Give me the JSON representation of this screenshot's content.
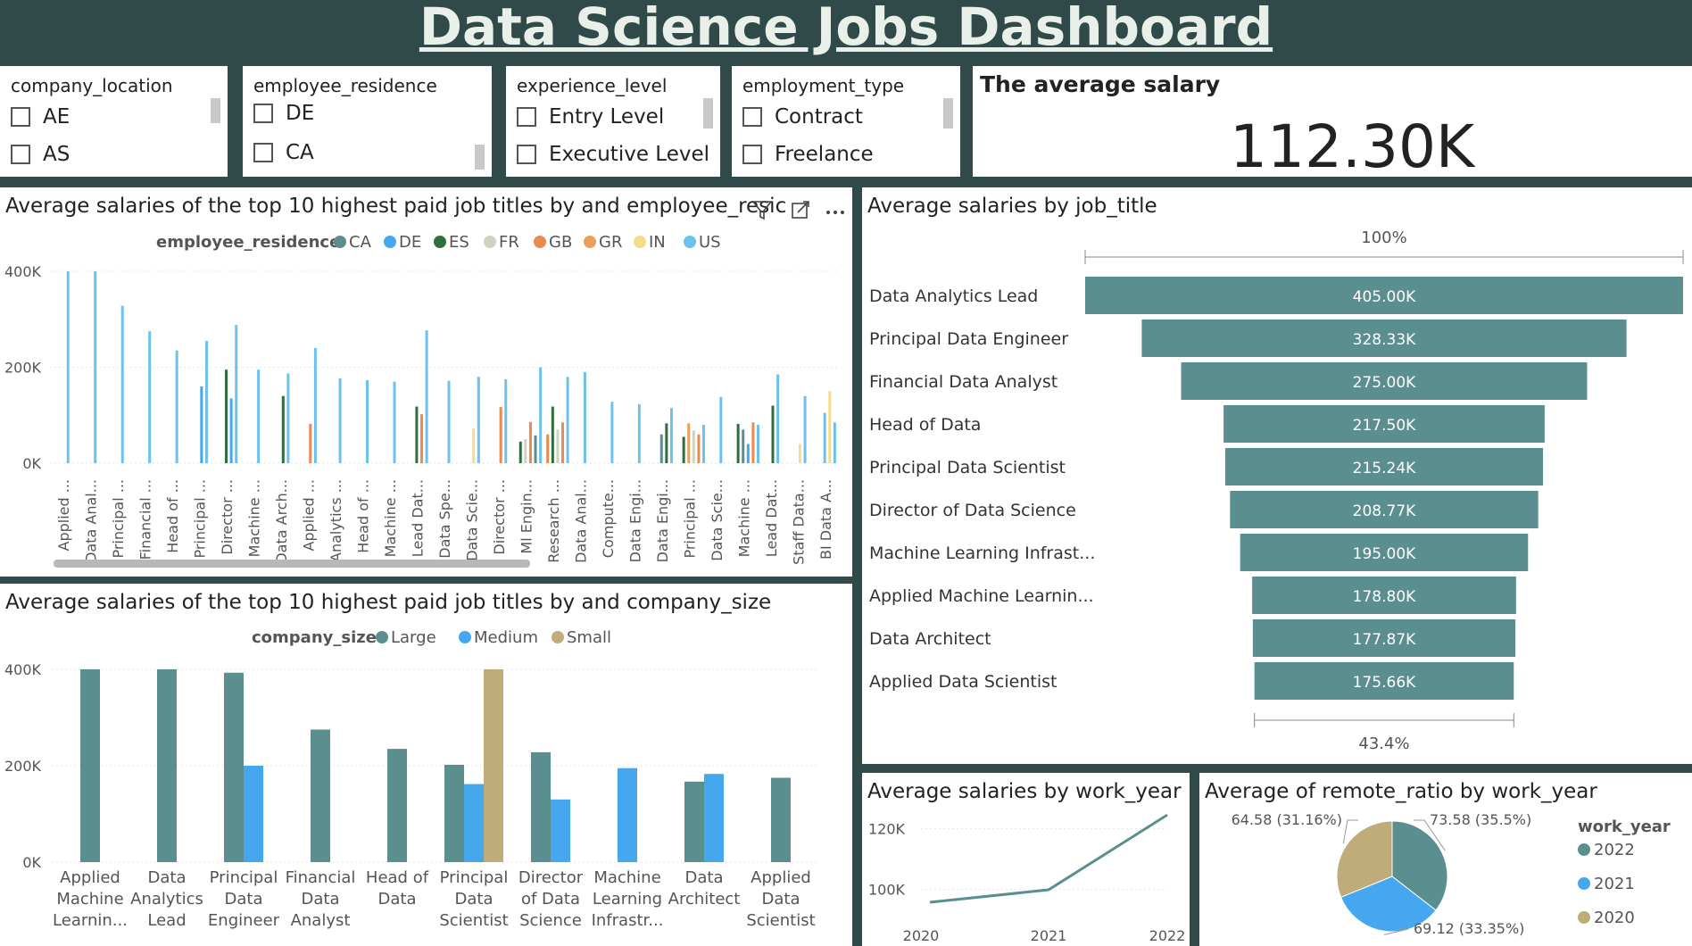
{
  "title": "Data Science Jobs Dashboard",
  "slicers": [
    {
      "label": "company_location",
      "options": [
        "AE",
        "AS"
      ]
    },
    {
      "label": "employee_residence",
      "options": [
        "DE",
        "CA"
      ]
    },
    {
      "label": "experience_level",
      "options": [
        "Entry Level",
        "Executive Level"
      ]
    },
    {
      "label": "employment_type",
      "options": [
        "Contract",
        "Freelance"
      ]
    }
  ],
  "kpi": {
    "label": "The average salary",
    "value": "112.30K"
  },
  "colors": {
    "teal": "#5b8f8f",
    "blue": "#45a8ef",
    "sand": "#bfac78",
    "CA": "#5b8f8f",
    "DE": "#45a8ef",
    "ES": "#2f6f3e",
    "FR": "#cfd4c0",
    "GB": "#e98a4e",
    "GR": "#e9a05a",
    "IN": "#f4dd8a",
    "US": "#6cc1ef"
  },
  "chart_data": [
    {
      "type": "bar",
      "title": "Average salaries of the top 10 highest paid job titles by and employee_resic",
      "legend_title": "employee_residence",
      "legend": [
        "CA",
        "DE",
        "ES",
        "FR",
        "GB",
        "GR",
        "IN",
        "US"
      ],
      "ylim": [
        0,
        400000
      ],
      "yticks": [
        "0K",
        "200K",
        "400K"
      ],
      "categories": [
        "Applied ...",
        "Data Anal...",
        "Principal ...",
        "Financial ...",
        "Head of ...",
        "Principal ...",
        "Director ...",
        "Machine ...",
        "Data Arch...",
        "Applied ...",
        "Analytics ...",
        "Head of ...",
        "Machine ...",
        "Lead Dat...",
        "Data Spe...",
        "Data Scie...",
        "Director ...",
        "Ml Engin...",
        "Research ...",
        "Data Anal...",
        "Compute...",
        "Data Engi...",
        "Data Engi...",
        "Principal ...",
        "Data Scie...",
        "Machine ...",
        "Lead Dat...",
        "Staff Data...",
        "BI Data A..."
      ],
      "bars": [
        [
          [
            "US",
            400000
          ]
        ],
        [
          [
            "US",
            400000
          ]
        ],
        [
          [
            "US",
            328000
          ]
        ],
        [
          [
            "US",
            275000
          ]
        ],
        [
          [
            "US",
            235000
          ]
        ],
        [
          [
            "DE",
            160000
          ],
          [
            "US",
            255000
          ]
        ],
        [
          [
            "ES",
            195000
          ],
          [
            "DE",
            135000
          ],
          [
            "US",
            288000
          ]
        ],
        [
          [
            "US",
            195000
          ]
        ],
        [
          [
            "ES",
            140000
          ],
          [
            "US",
            187000
          ]
        ],
        [
          [
            "GB",
            82000
          ],
          [
            "US",
            240000
          ]
        ],
        [
          [
            "US",
            177000
          ]
        ],
        [
          [
            "US",
            173000
          ]
        ],
        [
          [
            "US",
            170000
          ]
        ],
        [
          [
            "ES",
            118000
          ],
          [
            "GB",
            102000
          ],
          [
            "US",
            277000
          ]
        ],
        [
          [
            "US",
            172000
          ]
        ],
        [
          [
            "IN",
            72000
          ],
          [
            "US",
            180000
          ]
        ],
        [
          [
            "GB",
            117000
          ],
          [
            "US",
            175000
          ]
        ],
        [
          [
            "ES",
            45000
          ],
          [
            "FR",
            50000
          ],
          [
            "GB",
            86000
          ],
          [
            "CA",
            58000
          ],
          [
            "US",
            200000
          ]
        ],
        [
          [
            "GB",
            60000
          ],
          [
            "ES",
            118000
          ],
          [
            "FR",
            70000
          ],
          [
            "GB",
            85000
          ],
          [
            "US",
            180000
          ]
        ],
        [
          [
            "US",
            190000
          ]
        ],
        [
          [
            "US",
            128000
          ]
        ],
        [
          [
            "US",
            123000
          ]
        ],
        [
          [
            "CA",
            60000
          ],
          [
            "ES",
            83000
          ],
          [
            "US",
            115000
          ]
        ],
        [
          [
            "ES",
            55000
          ],
          [
            "GR",
            83000
          ],
          [
            "FR",
            68000
          ],
          [
            "GB",
            60000
          ],
          [
            "US",
            80000
          ]
        ],
        [
          [
            "US",
            138000
          ]
        ],
        [
          [
            "ES",
            82000
          ],
          [
            "CA",
            70000
          ],
          [
            "DE",
            40000
          ],
          [
            "GB",
            85000
          ],
          [
            "US",
            80000
          ]
        ],
        [
          [
            "ES",
            120000
          ],
          [
            "US",
            185000
          ]
        ],
        [
          [
            "IN",
            40000
          ],
          [
            "US",
            140000
          ]
        ],
        [
          [
            "US",
            105000
          ],
          [
            "IN",
            150000
          ],
          [
            "US",
            85000
          ]
        ]
      ]
    },
    {
      "type": "bar",
      "title": "Average salaries of the top 10 highest paid job titles by and company_size",
      "legend_title": "company_size",
      "legend": [
        "Large",
        "Medium",
        "Small"
      ],
      "ylim": [
        0,
        400000
      ],
      "yticks": [
        "0K",
        "200K",
        "400K"
      ],
      "categories": [
        [
          "Applied",
          "Machine",
          "Learnin..."
        ],
        [
          "Data",
          "Analytics",
          "Lead"
        ],
        [
          "Principal",
          "Data",
          "Engineer"
        ],
        [
          "Financial",
          "Data",
          "Analyst"
        ],
        [
          "Head of",
          "Data"
        ],
        [
          "Principal",
          "Data",
          "Scientist"
        ],
        [
          "Director",
          "of Data",
          "Science"
        ],
        [
          "Machine",
          "Learning",
          "Infrastr..."
        ],
        [
          "Data",
          "Architect"
        ],
        [
          "Applied",
          "Data",
          "Scientist"
        ]
      ],
      "series": [
        {
          "name": "Large",
          "values": [
            400000,
            400000,
            393000,
            275000,
            235000,
            202000,
            228000,
            null,
            167000,
            175000
          ]
        },
        {
          "name": "Medium",
          "values": [
            null,
            null,
            200000,
            null,
            null,
            162000,
            130000,
            195000,
            183000,
            null
          ]
        },
        {
          "name": "Small",
          "values": [
            null,
            null,
            null,
            null,
            null,
            400000,
            null,
            null,
            null,
            null
          ]
        }
      ]
    },
    {
      "type": "funnel",
      "title": "Average salaries by job_title",
      "top_label": "100%",
      "bottom_label": "43.4%",
      "categories": [
        "Data Analytics Lead",
        "Principal Data Engineer",
        "Financial Data Analyst",
        "Head of Data",
        "Principal Data Scientist",
        "Director of Data Science",
        "Machine Learning Infrast...",
        "Applied Machine Learnin...",
        "Data Architect",
        "Applied Data Scientist"
      ],
      "values": [
        405000,
        328330,
        275000,
        217500,
        215240,
        208770,
        195000,
        178800,
        177870,
        175660
      ],
      "labels": [
        "405.00K",
        "328.33K",
        "275.00K",
        "217.50K",
        "215.24K",
        "208.77K",
        "195.00K",
        "178.80K",
        "177.87K",
        "175.66K"
      ]
    },
    {
      "type": "line",
      "title": "Average salaries by work_year",
      "x": [
        "2020",
        "2021",
        "2022"
      ],
      "values": [
        95800,
        99900,
        124500
      ],
      "ylim": [
        92000,
        126000
      ],
      "yticks": [
        {
          "value": 100000,
          "label": "100K"
        },
        {
          "value": 120000,
          "label": "120K"
        }
      ]
    },
    {
      "type": "pie",
      "title": "Average of remote_ratio by work_year",
      "legend_title": "work_year",
      "legend": [
        "2022",
        "2021",
        "2020"
      ],
      "slices": [
        {
          "name": "2022",
          "value": 73.58,
          "label": "73.58 (35.5%)"
        },
        {
          "name": "2021",
          "value": 69.12,
          "label": "69.12 (33.35%)"
        },
        {
          "name": "2020",
          "value": 64.58,
          "label": "64.58 (31.16%)"
        }
      ]
    }
  ]
}
